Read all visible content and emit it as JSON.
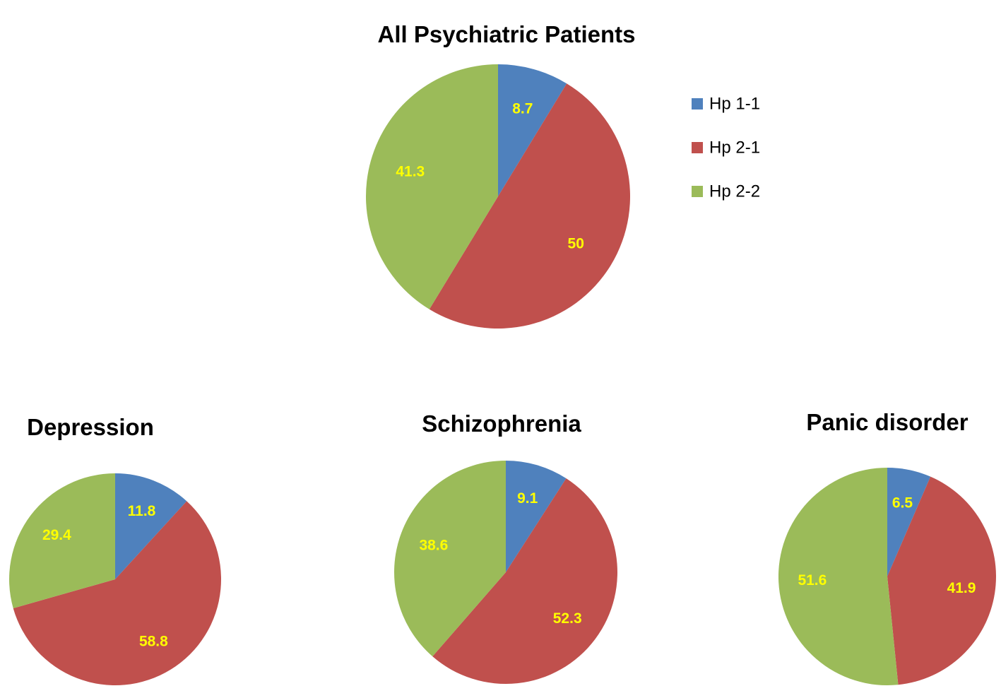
{
  "legend": {
    "items": [
      {
        "label": "Hp 1-1",
        "color": "#4f81bd"
      },
      {
        "label": "Hp 2-1",
        "color": "#c0504d"
      },
      {
        "label": "Hp 2-2",
        "color": "#9bbb59"
      }
    ],
    "placement": "right of top chart"
  },
  "label_color": "#ffff00",
  "chart_data": [
    {
      "type": "pie",
      "title": "All Psychiatric Patients",
      "categories": [
        "Hp 1-1",
        "Hp 2-1",
        "Hp 2-2"
      ],
      "values": [
        8.7,
        50,
        41.3
      ],
      "labels": [
        "8.7",
        "50",
        "41.3"
      ]
    },
    {
      "type": "pie",
      "title": "Depression",
      "categories": [
        "Hp 1-1",
        "Hp 2-1",
        "Hp 2-2"
      ],
      "values": [
        11.8,
        58.8,
        29.4
      ],
      "labels": [
        "11.8",
        "58.8",
        "29.4"
      ]
    },
    {
      "type": "pie",
      "title": "Schizophrenia",
      "categories": [
        "Hp 1-1",
        "Hp 2-1",
        "Hp 2-2"
      ],
      "values": [
        9.1,
        52.3,
        38.6
      ],
      "labels": [
        "9.1",
        "52.3",
        "38.6"
      ]
    },
    {
      "type": "pie",
      "title": "Panic disorder",
      "categories": [
        "Hp 1-1",
        "Hp 2-1",
        "Hp 2-2"
      ],
      "values": [
        6.5,
        41.9,
        51.6
      ],
      "labels": [
        "6.5",
        "41.9",
        "51.6"
      ]
    }
  ]
}
